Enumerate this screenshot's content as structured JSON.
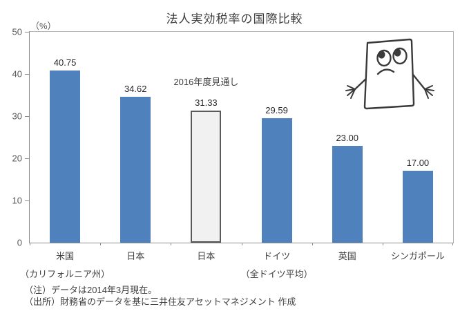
{
  "title": "法人実効税率の国際比較",
  "unit_label": "（%）",
  "chart_data": {
    "type": "bar",
    "title": "法人実効税率の国際比較",
    "ylabel": "（%）",
    "xlabel": "",
    "ylim": [
      0,
      50
    ],
    "yticks": [
      0,
      10,
      20,
      30,
      40,
      50
    ],
    "grid": false,
    "legend": "none",
    "categories": [
      "米国",
      "日本",
      "日本",
      "ドイツ",
      "英国",
      "シンガポール"
    ],
    "sub_labels": [
      "（カリフォルニア州）",
      "",
      "",
      "（全ドイツ平均）",
      "",
      ""
    ],
    "values": [
      40.75,
      34.62,
      31.33,
      29.59,
      23.0,
      17.0
    ],
    "value_labels": [
      "40.75",
      "34.62",
      "31.33",
      "29.59",
      "23.00",
      "17.00"
    ],
    "bar_styles": [
      "blue",
      "blue",
      "forecast",
      "blue",
      "blue",
      "blue"
    ],
    "annotation": "2016年度見通し",
    "annotation_index": 2,
    "colors": {
      "bar_blue": "#4f81bd",
      "bar_forecast_fill": "#f1f1f1",
      "bar_forecast_border": "#595959",
      "axis": "#8c8c8c",
      "text": "#404040"
    }
  },
  "notes": [
    "（注）データは2014年3月現在。",
    "（出所）財務省のデータを基に三井住友アセットマネジメント 作成"
  ],
  "mascot": "worried-document-character"
}
